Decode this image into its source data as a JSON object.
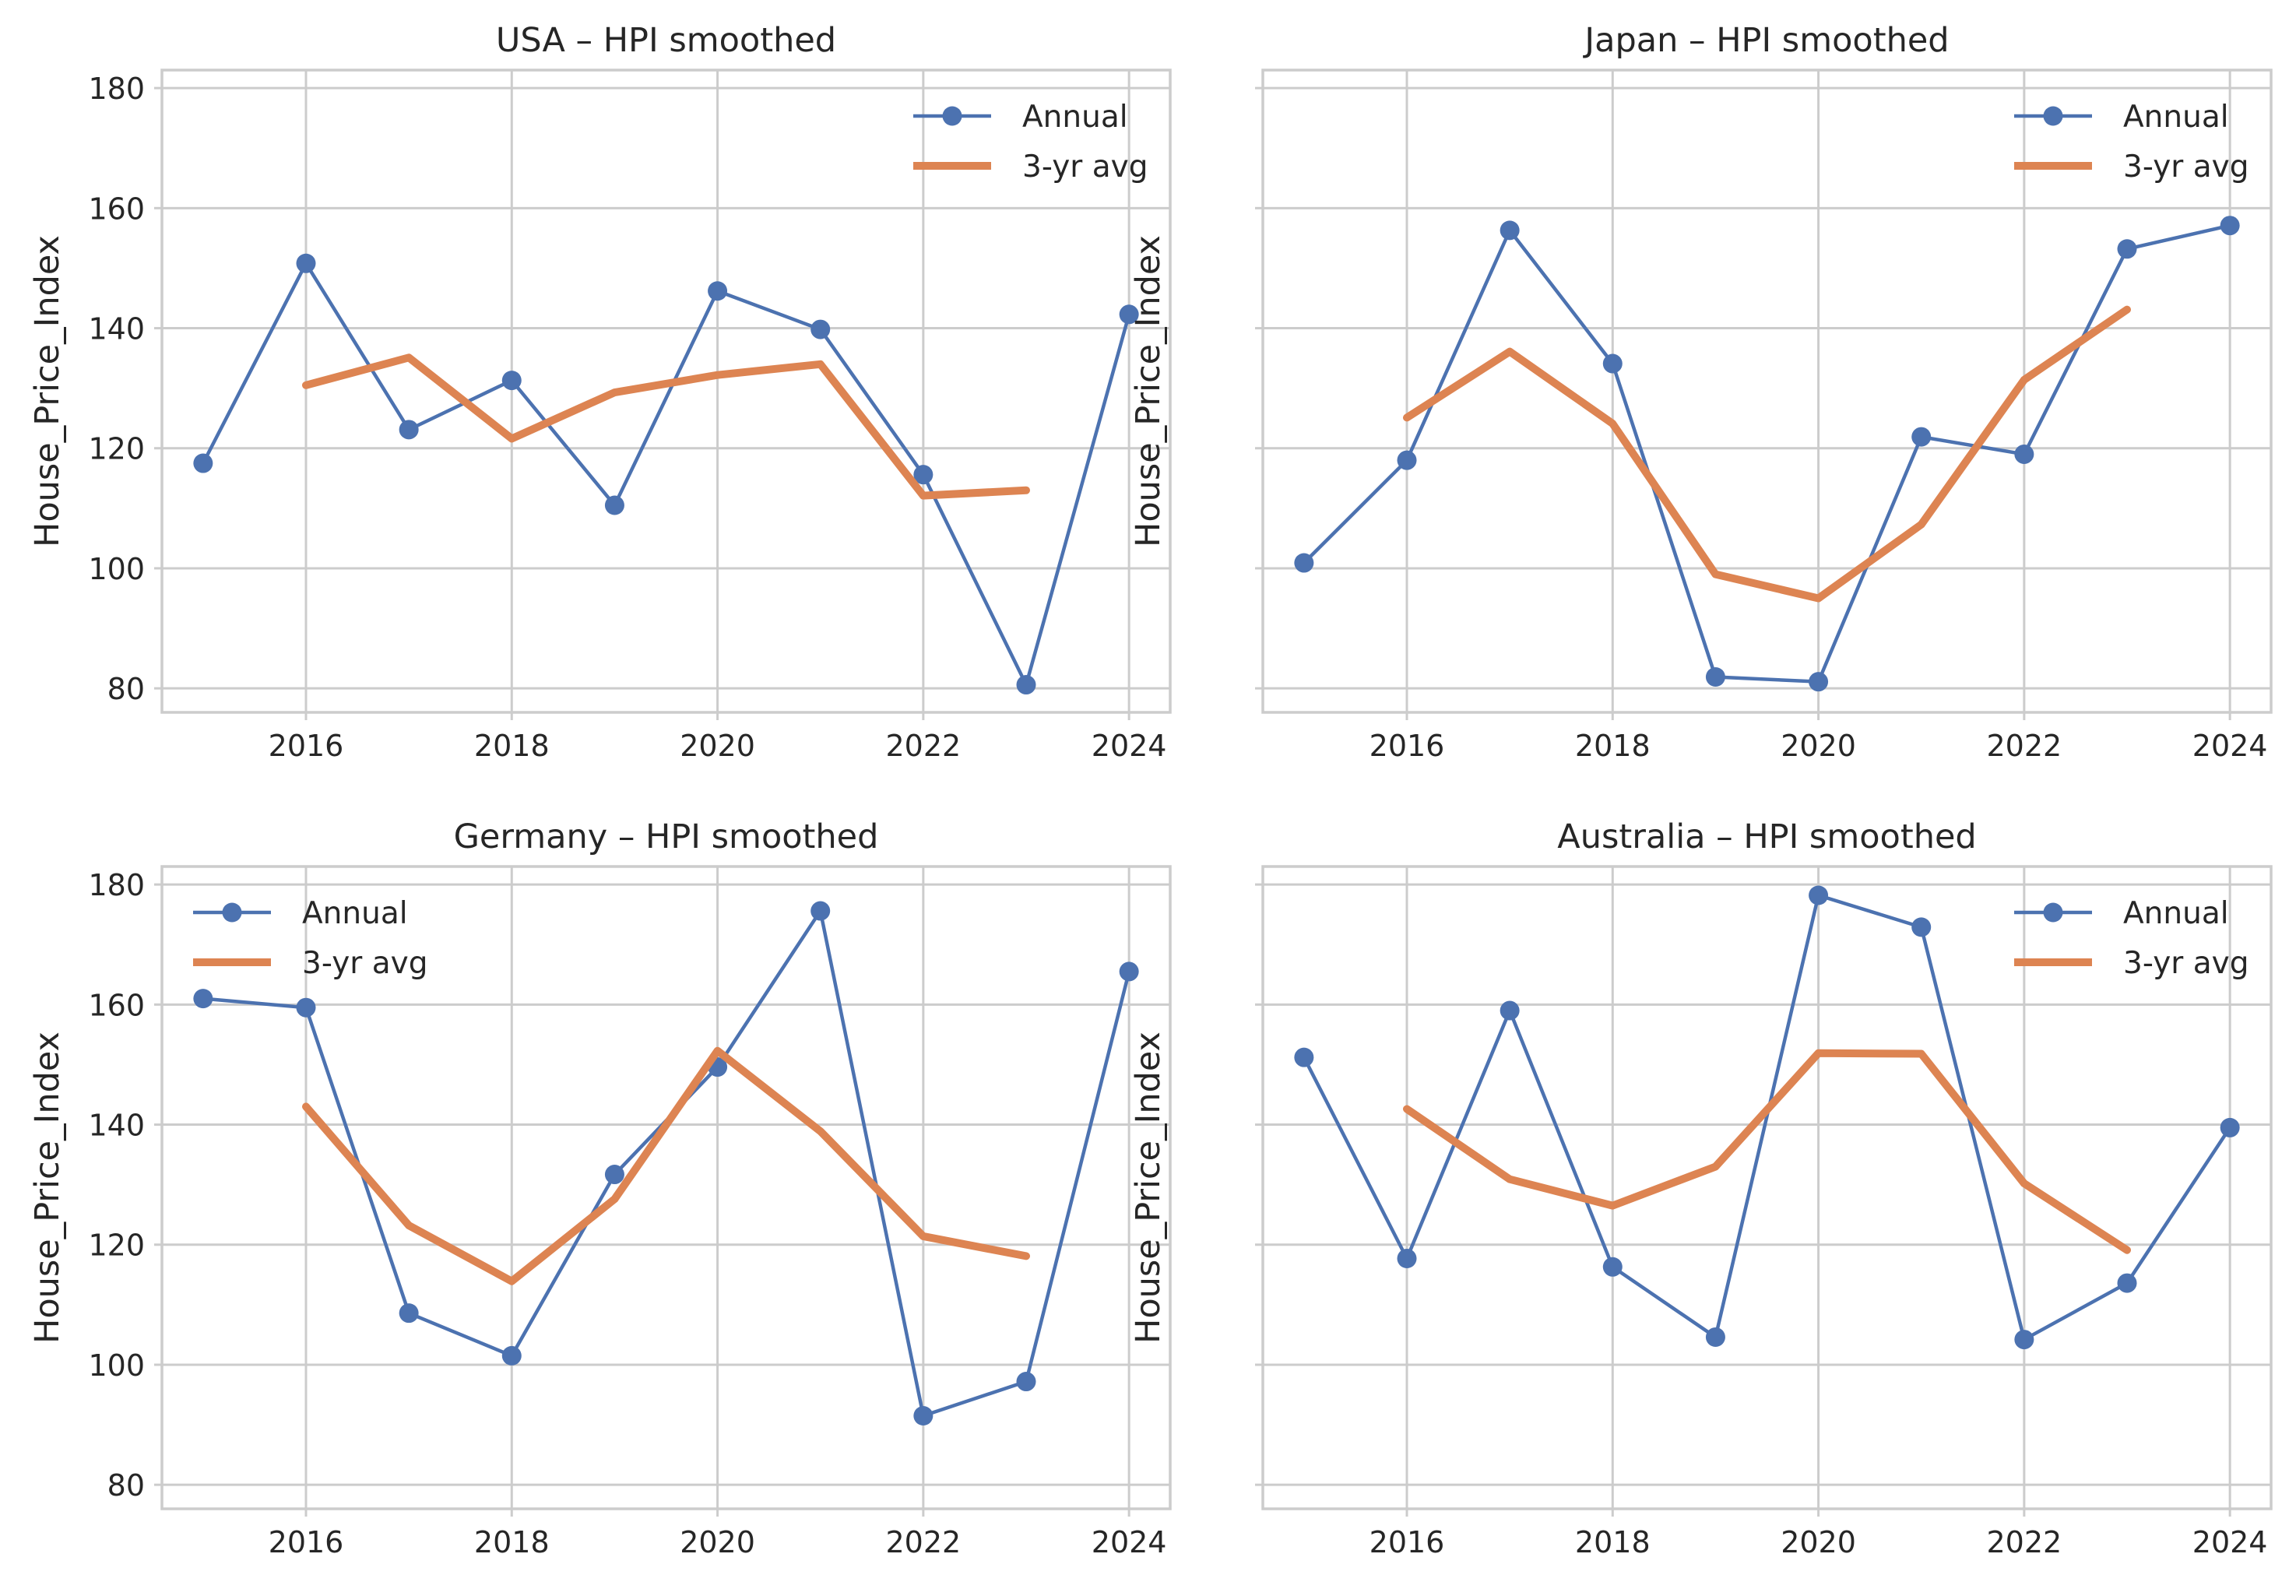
{
  "colors": {
    "annual": "#4c72b0",
    "avg": "#dd8452",
    "grid": "#cccccc",
    "spine": "#cccccc",
    "text": "#262626",
    "background": "#ffffff"
  },
  "chart_data": [
    {
      "type": "line",
      "title": "USA – HPI smoothed",
      "ylabel": "House_Price_Index",
      "xlabel": "",
      "xlim": [
        2014.6,
        2024.4
      ],
      "ylim": [
        76,
        183
      ],
      "xticks": [
        2016,
        2018,
        2020,
        2022,
        2024
      ],
      "yticks": [
        80,
        100,
        120,
        140,
        160,
        180
      ],
      "show_yticklabels": true,
      "grid": true,
      "legend_position": "upper right",
      "series": [
        {
          "name": "Annual",
          "style": "line-marker",
          "x": [
            2015,
            2016,
            2017,
            2018,
            2019,
            2020,
            2021,
            2022,
            2023,
            2024
          ],
          "y": [
            117.5,
            150.8,
            123.1,
            131.3,
            110.5,
            146.2,
            139.8,
            115.6,
            80.6,
            142.3
          ]
        },
        {
          "name": "3-yr avg",
          "style": "thick-line",
          "x": [
            2016,
            2017,
            2018,
            2019,
            2020,
            2021,
            2022,
            2023
          ],
          "y": [
            130.5,
            135.1,
            121.6,
            129.3,
            132.2,
            134.0,
            112.1,
            113.0
          ]
        }
      ]
    },
    {
      "type": "line",
      "title": "Japan – HPI smoothed",
      "ylabel": "House_Price_Index",
      "xlabel": "",
      "xlim": [
        2014.6,
        2024.4
      ],
      "ylim": [
        76,
        183
      ],
      "xticks": [
        2016,
        2018,
        2020,
        2022,
        2024
      ],
      "yticks": [
        80,
        100,
        120,
        140,
        160,
        180
      ],
      "show_yticklabels": false,
      "grid": true,
      "legend_position": "upper right",
      "series": [
        {
          "name": "Annual",
          "style": "line-marker",
          "x": [
            2015,
            2016,
            2017,
            2018,
            2019,
            2020,
            2021,
            2022,
            2023,
            2024
          ],
          "y": [
            100.9,
            118.0,
            156.3,
            134.1,
            81.9,
            81.1,
            121.9,
            119.0,
            153.2,
            157.1
          ]
        },
        {
          "name": "3-yr avg",
          "style": "thick-line",
          "x": [
            2016,
            2017,
            2018,
            2019,
            2020,
            2021,
            2022,
            2023
          ],
          "y": [
            125.1,
            136.1,
            124.1,
            99.0,
            95.0,
            107.3,
            131.4,
            143.1
          ]
        }
      ]
    },
    {
      "type": "line",
      "title": "Germany – HPI smoothed",
      "ylabel": "House_Price_Index",
      "xlabel": "",
      "xlim": [
        2014.6,
        2024.4
      ],
      "ylim": [
        76,
        183
      ],
      "xticks": [
        2016,
        2018,
        2020,
        2022,
        2024
      ],
      "yticks": [
        80,
        100,
        120,
        140,
        160,
        180
      ],
      "show_yticklabels": true,
      "grid": true,
      "legend_position": "upper left",
      "series": [
        {
          "name": "Annual",
          "style": "line-marker",
          "x": [
            2015,
            2016,
            2017,
            2018,
            2019,
            2020,
            2021,
            2022,
            2023,
            2024
          ],
          "y": [
            161.0,
            159.5,
            108.6,
            101.5,
            131.7,
            149.6,
            175.6,
            91.5,
            97.2,
            165.5
          ]
        },
        {
          "name": "3-yr avg",
          "style": "thick-line",
          "x": [
            2016,
            2017,
            2018,
            2019,
            2020,
            2021,
            2022,
            2023
          ],
          "y": [
            143.0,
            123.2,
            113.9,
            127.6,
            152.3,
            138.9,
            121.4,
            118.1
          ]
        }
      ]
    },
    {
      "type": "line",
      "title": "Australia – HPI smoothed",
      "ylabel": "House_Price_Index",
      "xlabel": "",
      "xlim": [
        2014.6,
        2024.4
      ],
      "ylim": [
        76,
        183
      ],
      "xticks": [
        2016,
        2018,
        2020,
        2022,
        2024
      ],
      "yticks": [
        80,
        100,
        120,
        140,
        160,
        180
      ],
      "show_yticklabels": false,
      "grid": true,
      "legend_position": "upper right",
      "series": [
        {
          "name": "Annual",
          "style": "line-marker",
          "x": [
            2015,
            2016,
            2017,
            2018,
            2019,
            2020,
            2021,
            2022,
            2023,
            2024
          ],
          "y": [
            151.2,
            117.7,
            159.0,
            116.3,
            104.6,
            178.2,
            172.9,
            104.2,
            113.6,
            139.5
          ]
        },
        {
          "name": "3-yr avg",
          "style": "thick-line",
          "x": [
            2016,
            2017,
            2018,
            2019,
            2020,
            2021,
            2022,
            2023
          ],
          "y": [
            142.6,
            130.9,
            126.5,
            133.0,
            151.9,
            151.8,
            130.2,
            119.1
          ]
        }
      ]
    }
  ]
}
